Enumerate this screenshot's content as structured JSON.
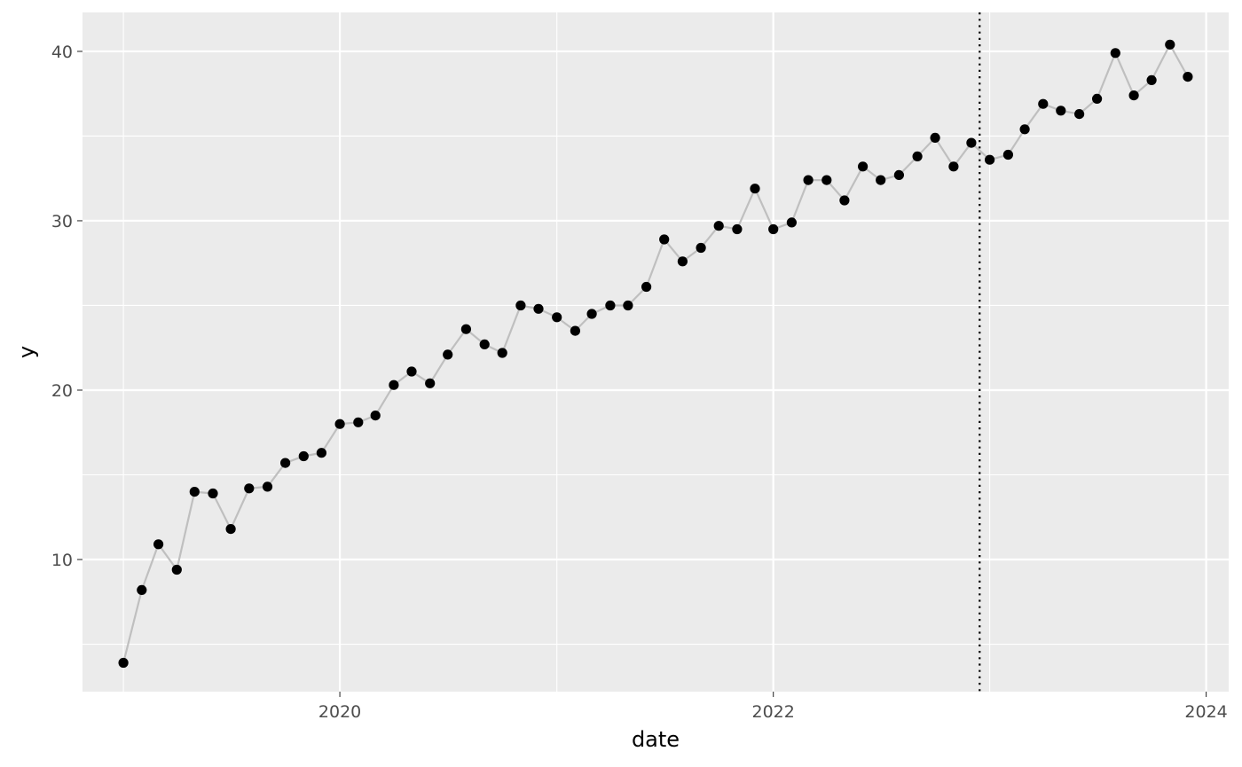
{
  "chart_data": {
    "type": "line",
    "title": "",
    "xlabel": "date",
    "ylabel": "y",
    "x_ticks": [
      "2020",
      "2022",
      "2024"
    ],
    "y_ticks": [
      10,
      20,
      30,
      40
    ],
    "xlim": [
      "2018-10-24",
      "2024-02-08"
    ],
    "ylim": [
      2.2,
      42.3
    ],
    "grid": true,
    "vline": {
      "x": "2022-12-15",
      "style": "dotted"
    },
    "series": [
      {
        "x": [
          "2019-01-01",
          "2019-02-01",
          "2019-03-01",
          "2019-04-01",
          "2019-05-01",
          "2019-06-01",
          "2019-07-01",
          "2019-08-01",
          "2019-09-01",
          "2019-10-01",
          "2019-11-01",
          "2019-12-01",
          "2020-01-01",
          "2020-02-01",
          "2020-03-01",
          "2020-04-01",
          "2020-05-01",
          "2020-06-01",
          "2020-07-01",
          "2020-08-01",
          "2020-09-01",
          "2020-10-01",
          "2020-11-01",
          "2020-12-01",
          "2021-01-01",
          "2021-02-01",
          "2021-03-01",
          "2021-04-01",
          "2021-05-01",
          "2021-06-01",
          "2021-07-01",
          "2021-08-01",
          "2021-09-01",
          "2021-10-01",
          "2021-11-01",
          "2021-12-01",
          "2022-01-01",
          "2022-02-01",
          "2022-03-01",
          "2022-04-01",
          "2022-05-01",
          "2022-06-01",
          "2022-07-01",
          "2022-08-01",
          "2022-09-01",
          "2022-10-01",
          "2022-11-01",
          "2022-12-01",
          "2023-01-01",
          "2023-02-01",
          "2023-03-01",
          "2023-04-01",
          "2023-05-01",
          "2023-06-01",
          "2023-07-01",
          "2023-08-01",
          "2023-09-01",
          "2023-10-01",
          "2023-11-01",
          "2023-12-01"
        ],
        "values": [
          3.9,
          8.2,
          10.9,
          9.4,
          14.0,
          13.9,
          11.8,
          14.2,
          14.3,
          15.7,
          16.1,
          16.3,
          18.0,
          18.1,
          18.5,
          20.3,
          21.1,
          20.4,
          22.1,
          23.6,
          22.7,
          22.2,
          25.0,
          24.8,
          24.3,
          23.5,
          24.5,
          25.0,
          25.0,
          26.1,
          28.9,
          27.6,
          28.4,
          29.7,
          29.5,
          31.9,
          29.5,
          29.9,
          32.4,
          32.4,
          31.2,
          33.2,
          32.4,
          32.7,
          33.8,
          34.9,
          33.2,
          34.6,
          33.6,
          33.9,
          35.4,
          36.9,
          36.5,
          36.3,
          37.2,
          39.9,
          37.4,
          38.3,
          40.4,
          38.5
        ],
        "line_color": "#bfbfbf",
        "point_color": "#000000"
      }
    ],
    "colors": {
      "panel": "#ebebeb",
      "grid_major": "#ffffff",
      "vline": "#000000"
    }
  }
}
